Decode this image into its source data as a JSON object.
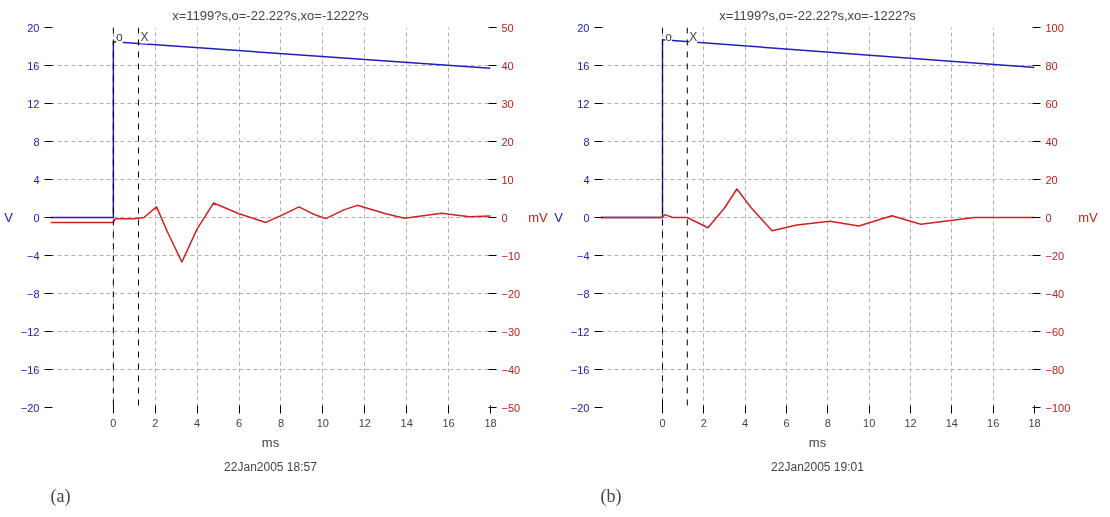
{
  "chart_data": [
    {
      "type": "line",
      "title": "x=1199?s,o=-22.22?s,xo=-1222?s",
      "xlabel": "ms",
      "ylabel": "V",
      "y2label": "mV",
      "xlim": [
        -3,
        18
      ],
      "xticks": [
        0,
        2,
        4,
        6,
        8,
        10,
        12,
        14,
        16,
        18
      ],
      "ylim": [
        -20,
        20
      ],
      "yticks": [
        -20,
        -16,
        -12,
        -8,
        -4,
        0,
        4,
        8,
        12,
        16,
        20
      ],
      "y2lim": [
        -50,
        50
      ],
      "y2ticks": [
        -50,
        -40,
        -30,
        -20,
        -10,
        0,
        10,
        20,
        30,
        40,
        50
      ],
      "grid": true,
      "line_style": "solid",
      "series": [
        {
          "color": "#2020c0",
          "x": [
            -3,
            0,
            0,
            18
          ],
          "values": [
            0,
            0,
            18.5,
            15.7
          ]
        },
        {
          "color": "#d02020",
          "axis": "y2",
          "x": [
            -3,
            0,
            0.1,
            1.0,
            1.46,
            2.06,
            2.6,
            3.27,
            4.0,
            4.78,
            6.0,
            7.27,
            8.0,
            8.86,
            9.5,
            10.14,
            11.0,
            11.65,
            13.0,
            13.9,
            15.66,
            17.0,
            18
          ],
          "values": [
            -1.3,
            -1.3,
            -0.3,
            -0.3,
            0,
            2.8,
            -4,
            -11.7,
            -3,
            3.8,
            1.0,
            -1.3,
            0.5,
            2.8,
            1.0,
            -0.3,
            2.0,
            3.2,
            1.0,
            -0.2,
            1.1,
            0.2,
            0.4
          ]
        }
      ],
      "ref_lines": [
        {
          "axis": "x",
          "value": 0,
          "label": "o",
          "color": "#000000",
          "line_style": "dashed"
        },
        {
          "axis": "x",
          "value": 1.2,
          "label": "X",
          "color": "#000000",
          "line_style": "dashed"
        }
      ],
      "annotations": [
        "22Jan2005 18:57",
        "(a)"
      ]
    },
    {
      "type": "line",
      "title": "x=1199?s,o=-22.22?s,xo=-1222?s",
      "xlabel": "ms",
      "ylabel": "V",
      "y2label": "mV",
      "xlim": [
        -3,
        18
      ],
      "xticks": [
        0,
        2,
        4,
        6,
        8,
        10,
        12,
        14,
        16,
        18
      ],
      "ylim": [
        -20,
        20
      ],
      "yticks": [
        -20,
        -16,
        -12,
        -8,
        -4,
        0,
        4,
        8,
        12,
        16,
        20
      ],
      "y2lim": [
        -100,
        100
      ],
      "y2ticks": [
        -100,
        -80,
        -60,
        -40,
        -20,
        0,
        20,
        40,
        60,
        80,
        100
      ],
      "grid": true,
      "line_style": "solid",
      "series": [
        {
          "color": "#2020c0",
          "x": [
            -3,
            0,
            0,
            18
          ],
          "values": [
            0,
            0,
            18.7,
            15.8
          ]
        },
        {
          "color": "#d02020",
          "axis": "y2",
          "x": [
            -3,
            0,
            0.1,
            0.5,
            1.2,
            2.2,
            3.0,
            3.6,
            4.3,
            5.3,
            6.5,
            8.1,
            9.5,
            11.1,
            12.5,
            15.1,
            18
          ],
          "values": [
            0,
            0,
            1.5,
            0,
            0,
            -5.4,
            5,
            15,
            5,
            -7,
            -4,
            -2,
            -4.5,
            0.9,
            -3.6,
            0,
            0
          ]
        }
      ],
      "ref_lines": [
        {
          "axis": "x",
          "value": 0,
          "label": "o",
          "color": "#000000",
          "line_style": "dashed"
        },
        {
          "axis": "x",
          "value": 1.2,
          "label": "X",
          "color": "#000000",
          "line_style": "dashed"
        }
      ],
      "annotations": [
        "22Jan2005 19:01",
        "(b)"
      ]
    }
  ]
}
